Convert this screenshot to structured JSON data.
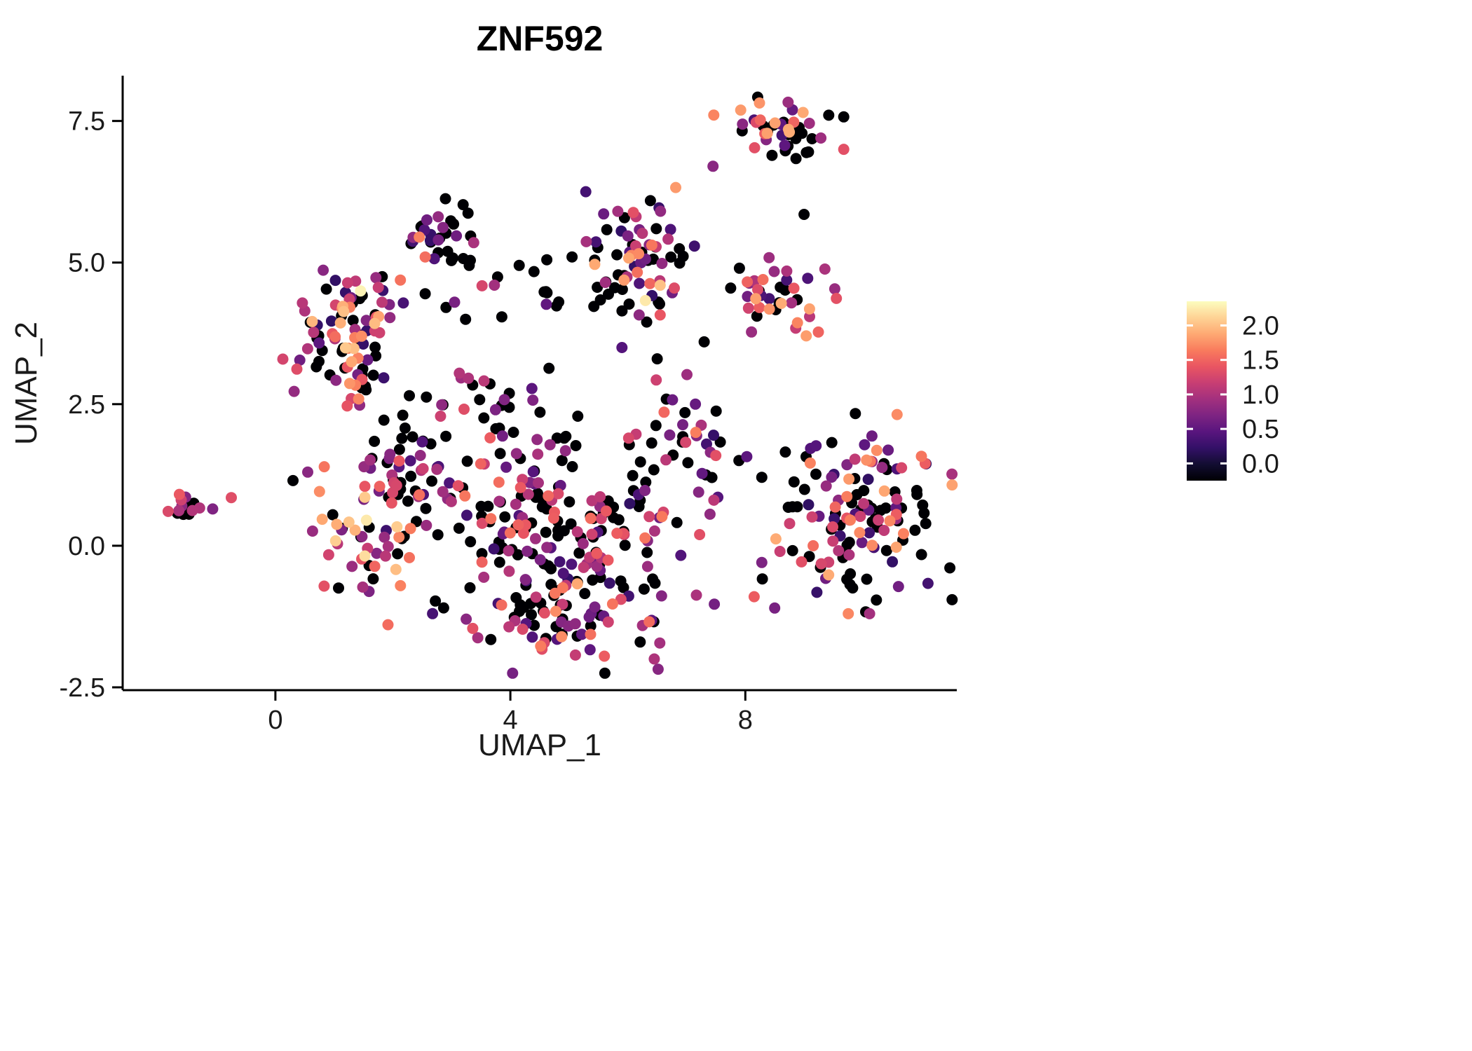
{
  "title": "ZNF592",
  "chart_data": {
    "type": "scatter",
    "title": "ZNF592",
    "xlabel": "UMAP_1",
    "ylabel": "UMAP_2",
    "xlim": [
      -2.6,
      11.6
    ],
    "ylim": [
      -2.55,
      8.3
    ],
    "x_ticks": [
      0,
      4,
      8
    ],
    "x_tick_labels": [
      "0",
      "4",
      "8"
    ],
    "y_ticks": [
      -2.5,
      0.0,
      2.5,
      5.0,
      7.5
    ],
    "y_tick_labels": [
      "-2.5",
      "0.0",
      "2.5",
      "5.0",
      "7.5"
    ],
    "grid": "off",
    "background": "#ffffff",
    "point_radius_px": 8,
    "legend_position": "right",
    "colormap": {
      "name": "magma",
      "domain": [
        0,
        2.3
      ],
      "stops": [
        "#000004",
        "#120d31",
        "#331067",
        "#59157e",
        "#7e2482",
        "#a3307e",
        "#c83e73",
        "#e95562",
        "#f97b5d",
        "#fea973",
        "#fed395",
        "#fcfdbf"
      ]
    },
    "legend": {
      "tick_values": [
        2.0,
        1.5,
        1.0,
        0.5,
        0.0
      ],
      "tick_labels": [
        "2.0",
        "1.5",
        "1.0",
        "0.5",
        "0.0"
      ],
      "bar_domain": [
        -0.25,
        2.35
      ]
    },
    "clusters": [
      {
        "name": "left-islet",
        "center": [
          -1.45,
          0.72
        ],
        "sd": [
          0.17,
          0.12
        ],
        "n": 16,
        "zero_fraction": 0.45,
        "value_range": [
          0.6,
          1.5
        ],
        "seed": 11
      },
      {
        "name": "top-mid",
        "center": [
          2.9,
          5.62
        ],
        "sd": [
          0.27,
          0.26
        ],
        "n": 30,
        "zero_fraction": 0.55,
        "value_range": [
          0.4,
          1.3
        ],
        "seed": 12
      },
      {
        "name": "top-right",
        "center": [
          8.55,
          7.35
        ],
        "sd": [
          0.5,
          0.26
        ],
        "n": 44,
        "zero_fraction": 0.4,
        "value_range": [
          0.5,
          1.9
        ],
        "seed": 13
      },
      {
        "name": "right-mid",
        "center": [
          8.65,
          4.3
        ],
        "sd": [
          0.4,
          0.35
        ],
        "n": 36,
        "zero_fraction": 0.3,
        "value_range": [
          0.5,
          1.9
        ],
        "seed": 14
      },
      {
        "name": "upper-mid",
        "center": [
          6.15,
          5.2
        ],
        "sd": [
          0.48,
          0.5
        ],
        "n": 62,
        "zero_fraction": 0.3,
        "value_range": [
          0.4,
          1.9
        ],
        "seed": 15
      },
      {
        "name": "left-upper",
        "center": [
          1.2,
          3.85
        ],
        "sd": [
          0.5,
          0.5
        ],
        "n": 80,
        "zero_fraction": 0.3,
        "value_range": [
          0.4,
          2.1
        ],
        "seed": 16
      },
      {
        "name": "left-bridge",
        "center": [
          1.4,
          2.85
        ],
        "sd": [
          0.25,
          0.3
        ],
        "n": 14,
        "zero_fraction": 0.35,
        "value_range": [
          0.5,
          2.0
        ],
        "seed": 17
      },
      {
        "name": "mid-left-arm",
        "center": [
          2.1,
          1.3
        ],
        "sd": [
          0.45,
          0.6
        ],
        "n": 46,
        "zero_fraction": 0.5,
        "value_range": [
          0.4,
          1.6
        ],
        "seed": 18
      },
      {
        "name": "left-lower-arm",
        "center": [
          1.5,
          0.0
        ],
        "sd": [
          0.4,
          0.62
        ],
        "n": 46,
        "zero_fraction": 0.2,
        "value_range": [
          0.7,
          2.15
        ],
        "seed": 19
      },
      {
        "name": "center-left",
        "center": [
          4.1,
          0.6
        ],
        "sd": [
          0.8,
          0.75
        ],
        "n": 92,
        "zero_fraction": 0.5,
        "value_range": [
          0.4,
          1.7
        ],
        "seed": 20
      },
      {
        "name": "center-right",
        "center": [
          5.8,
          0.1
        ],
        "sd": [
          0.85,
          0.8
        ],
        "n": 112,
        "zero_fraction": 0.45,
        "value_range": [
          0.4,
          1.8
        ],
        "seed": 21
      },
      {
        "name": "bottom-arc",
        "center": [
          4.7,
          -1.35
        ],
        "sd": [
          0.9,
          0.4
        ],
        "n": 56,
        "zero_fraction": 0.35,
        "value_range": [
          0.5,
          1.9
        ],
        "seed": 22
      },
      {
        "name": "center-upper-right",
        "center": [
          6.9,
          1.7
        ],
        "sd": [
          0.5,
          0.6
        ],
        "n": 38,
        "zero_fraction": 0.45,
        "value_range": [
          0.4,
          1.7
        ],
        "seed": 23
      },
      {
        "name": "upper-scatter",
        "center": [
          3.5,
          2.6
        ],
        "sd": [
          0.8,
          0.4
        ],
        "n": 26,
        "zero_fraction": 0.6,
        "value_range": [
          0.4,
          1.5
        ],
        "seed": 24
      },
      {
        "name": "mid-band",
        "center": [
          5.0,
          4.35
        ],
        "sd": [
          1.1,
          0.22
        ],
        "n": 24,
        "zero_fraction": 0.6,
        "value_range": [
          0.5,
          1.4
        ],
        "seed": 25
      },
      {
        "name": "right-cluster",
        "center": [
          9.9,
          0.6
        ],
        "sd": [
          0.72,
          0.8
        ],
        "n": 135,
        "zero_fraction": 0.45,
        "value_range": [
          0.4,
          1.9
        ],
        "seed": 26
      }
    ],
    "extra_points": [
      [
        -0.75,
        0.85,
        1.4
      ],
      [
        2.45,
        5.45,
        1.7
      ],
      [
        2.55,
        5.1,
        1.6
      ],
      [
        2.55,
        4.45,
        0
      ],
      [
        3.05,
        4.3,
        0.8
      ],
      [
        3.3,
        4.95,
        0
      ],
      [
        4.15,
        4.95,
        0
      ],
      [
        4.62,
        5.05,
        0
      ],
      [
        5.05,
        5.1,
        0
      ],
      [
        7.45,
        6.7,
        0.9
      ],
      [
        9.0,
        5.85,
        0
      ],
      [
        7.3,
        3.6,
        0
      ],
      [
        7.75,
        4.55,
        0
      ],
      [
        7.9,
        4.9,
        0
      ],
      [
        6.3,
        4.33,
        2.2
      ],
      [
        6.55,
        4.6,
        2.0
      ],
      [
        0.3,
        1.15,
        0
      ],
      [
        0.55,
        1.3,
        0.9
      ],
      [
        7.15,
        2.5,
        0.7
      ],
      [
        6.5,
        3.3,
        0
      ],
      [
        5.9,
        3.5,
        0.6
      ],
      [
        1.55,
        0.45,
        2.2
      ],
      [
        1.45,
        4.5,
        2.25
      ],
      [
        6.45,
        -2.0,
        1.1
      ],
      [
        5.6,
        -1.95,
        1.5
      ],
      [
        8.3,
        4.7,
        1.6
      ],
      [
        8.15,
        -0.9,
        1.5
      ],
      [
        8.5,
        -1.1,
        0.8
      ]
    ]
  }
}
